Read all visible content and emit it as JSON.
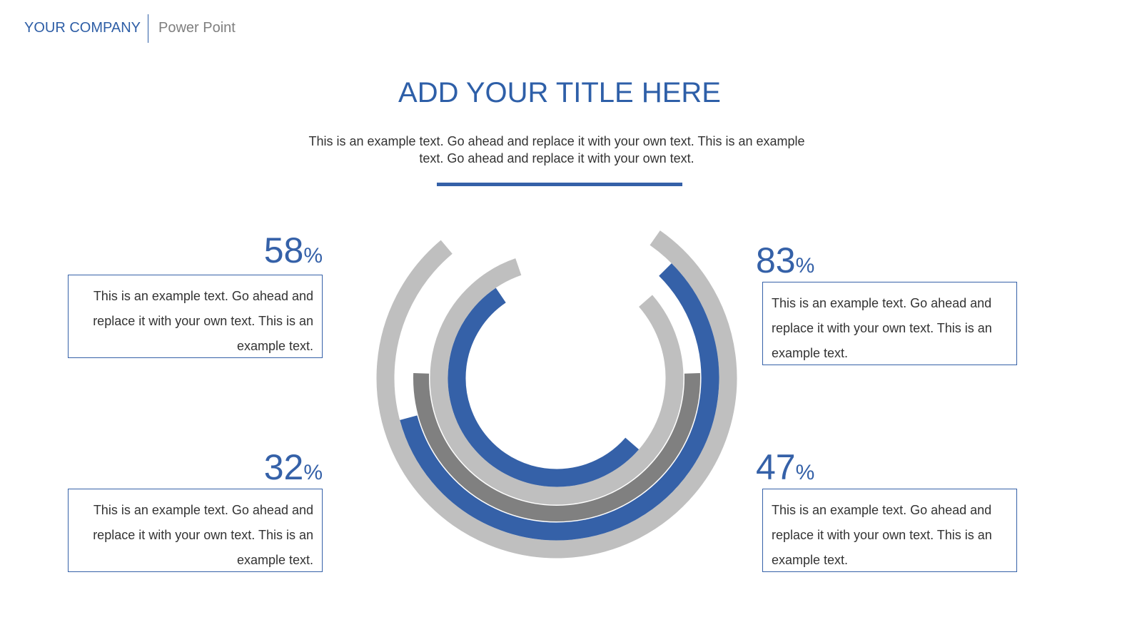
{
  "header": {
    "company": "YOUR COMPANY",
    "product": "Power Point"
  },
  "slide": {
    "title": "ADD YOUR TITLE HERE",
    "subtitle": "This is an example text. Go ahead and replace it with your own text. This is an example text. Go ahead and replace it with your own text."
  },
  "colors": {
    "accent": "#3561a8",
    "light_gray": "#bfbfbf",
    "dark_gray": "#808080"
  },
  "stats": [
    {
      "value": "58",
      "unit": "%",
      "text": "This is an example text. Go ahead and replace it with your own text. This is an example text."
    },
    {
      "value": "83",
      "unit": "%",
      "text": "This is an example text. Go ahead and replace it with your own text. This is an example text."
    },
    {
      "value": "32",
      "unit": "%",
      "text": "This is an example text. Go ahead and replace it with your own text. This is an example text."
    },
    {
      "value": "47",
      "unit": "%",
      "text": "This is an example text. Go ahead and replace it with your own text. This is an example text."
    }
  ],
  "chart_data": {
    "type": "radial-bar",
    "categories": [
      "58%",
      "83%",
      "32%",
      "47%"
    ],
    "values": [
      58,
      83,
      32,
      47
    ],
    "rings": [
      {
        "color": "#bfbfbf"
      },
      {
        "color": "#3561a8"
      },
      {
        "color": "#808080"
      },
      {
        "color": "#bfbfbf"
      },
      {
        "color": "#3561a8"
      }
    ]
  }
}
